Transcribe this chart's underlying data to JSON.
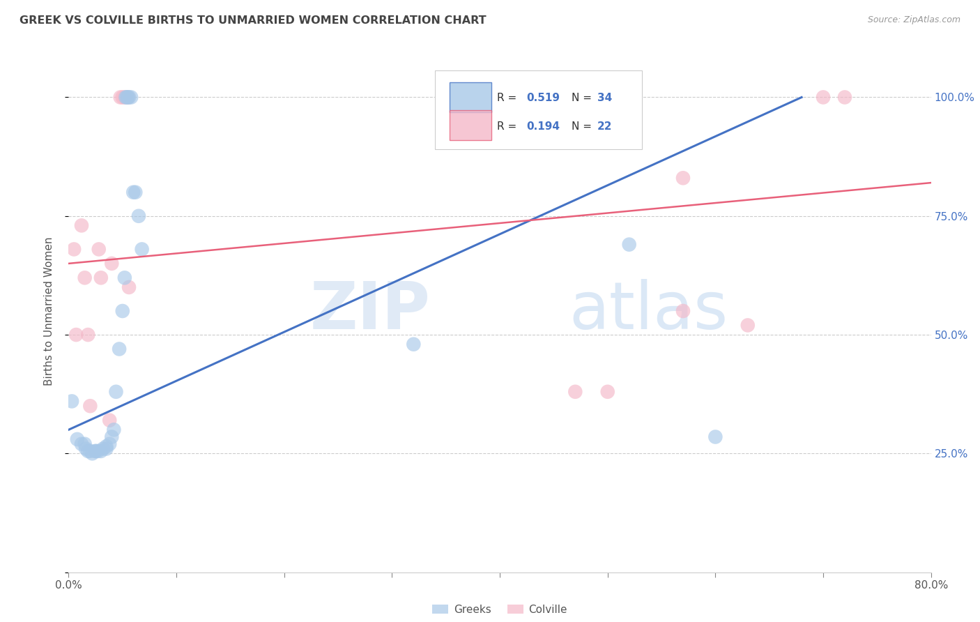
{
  "title": "GREEK VS COLVILLE BIRTHS TO UNMARRIED WOMEN CORRELATION CHART",
  "source": "Source: ZipAtlas.com",
  "ylabel": "Births to Unmarried Women",
  "xlim": [
    0.0,
    0.8
  ],
  "ylim": [
    0.0,
    1.1
  ],
  "ytick_values": [
    0.0,
    0.25,
    0.5,
    0.75,
    1.0
  ],
  "xtick_values": [
    0.0,
    0.1,
    0.2,
    0.3,
    0.4,
    0.5,
    0.6,
    0.7,
    0.8
  ],
  "blue_color": "#a8c8e8",
  "pink_color": "#f4b8c8",
  "blue_line_color": "#4472c4",
  "pink_line_color": "#e8607a",
  "blue_label": "Greeks",
  "pink_label": "Colville",
  "blue_r": "0.519",
  "blue_n": "34",
  "pink_r": "0.194",
  "pink_n": "22",
  "blue_points_x": [
    0.003,
    0.008,
    0.012,
    0.015,
    0.016,
    0.018,
    0.02,
    0.022,
    0.025,
    0.025,
    0.027,
    0.03,
    0.032,
    0.035,
    0.035,
    0.038,
    0.04,
    0.042,
    0.044,
    0.047,
    0.05,
    0.052,
    0.053,
    0.054,
    0.055,
    0.056,
    0.058,
    0.06,
    0.062,
    0.065,
    0.068,
    0.32,
    0.52,
    0.6
  ],
  "blue_points_y": [
    0.36,
    0.28,
    0.27,
    0.27,
    0.26,
    0.255,
    0.255,
    0.25,
    0.255,
    0.255,
    0.255,
    0.255,
    0.26,
    0.265,
    0.26,
    0.27,
    0.285,
    0.3,
    0.38,
    0.47,
    0.55,
    0.62,
    1.0,
    1.0,
    1.0,
    1.0,
    1.0,
    0.8,
    0.8,
    0.75,
    0.68,
    0.48,
    0.69,
    0.285
  ],
  "pink_points_x": [
    0.005,
    0.007,
    0.012,
    0.015,
    0.018,
    0.02,
    0.028,
    0.03,
    0.038,
    0.04,
    0.048,
    0.05,
    0.052,
    0.055,
    0.056,
    0.47,
    0.5,
    0.57,
    0.63,
    0.57,
    0.7,
    0.72
  ],
  "pink_points_y": [
    0.68,
    0.5,
    0.73,
    0.62,
    0.5,
    0.35,
    0.68,
    0.62,
    0.32,
    0.65,
    1.0,
    1.0,
    1.0,
    1.0,
    0.6,
    0.38,
    0.38,
    0.55,
    0.52,
    0.83,
    1.0,
    1.0
  ],
  "blue_line_x": [
    0.0,
    0.68
  ],
  "blue_line_y": [
    0.3,
    1.0
  ],
  "pink_line_x": [
    0.0,
    0.8
  ],
  "pink_line_y": [
    0.65,
    0.82
  ],
  "grid_color": "#cccccc",
  "right_tick_color": "#4472c4",
  "watermark_zip_color": "#ccdcee",
  "watermark_atlas_color": "#b8cce4"
}
